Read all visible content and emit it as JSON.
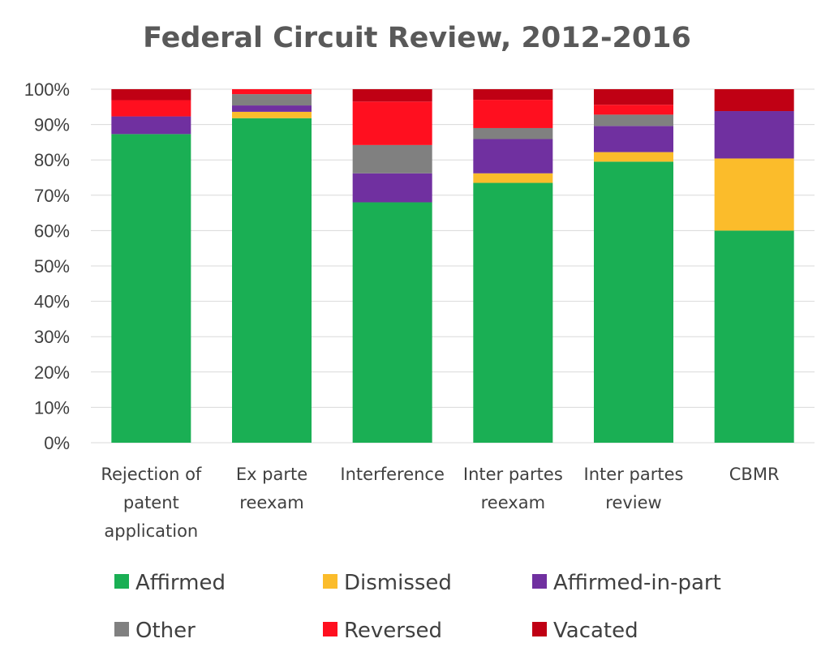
{
  "chart_data": {
    "type": "bar",
    "stacked": true,
    "title": "Federal Circuit Review, 2012-2016",
    "xlabel": "",
    "ylabel": "",
    "ylim": [
      0,
      100
    ],
    "yticks": [
      "0%",
      "10%",
      "20%",
      "30%",
      "40%",
      "50%",
      "60%",
      "70%",
      "80%",
      "90%",
      "100%"
    ],
    "grid": true,
    "legend_position": "bottom",
    "categories": [
      [
        "Rejection of",
        "patent",
        "application"
      ],
      [
        "Ex parte",
        "reexam"
      ],
      [
        "Interference"
      ],
      [
        "Inter partes",
        "reexam"
      ],
      [
        "Inter partes",
        "review"
      ],
      [
        "CBMR"
      ]
    ],
    "series": [
      {
        "name": "Affirmed",
        "color": "#1aaf54",
        "values": [
          87.3,
          91.8,
          68.0,
          73.5,
          79.5,
          60.0
        ]
      },
      {
        "name": "Dismissed",
        "color": "#fbbc2b",
        "values": [
          0.0,
          1.8,
          0.0,
          2.7,
          2.7,
          20.4
        ]
      },
      {
        "name": "Affirmed-in-part",
        "color": "#7030a0",
        "values": [
          5.0,
          1.8,
          8.2,
          9.7,
          7.4,
          13.4
        ]
      },
      {
        "name": "Other",
        "color": "#808080",
        "values": [
          0.0,
          3.2,
          8.0,
          3.1,
          3.2,
          0.0
        ]
      },
      {
        "name": "Reversed",
        "color": "#ff0f1f",
        "values": [
          4.6,
          1.4,
          12.3,
          8.0,
          2.8,
          0.0
        ]
      },
      {
        "name": "Vacated",
        "color": "#c00014",
        "values": [
          3.1,
          0.0,
          3.5,
          3.0,
          4.4,
          6.2
        ]
      }
    ],
    "legend_order": [
      "Affirmed",
      "Dismissed",
      "Affirmed-in-part",
      "Other",
      "Reversed",
      "Vacated"
    ]
  }
}
